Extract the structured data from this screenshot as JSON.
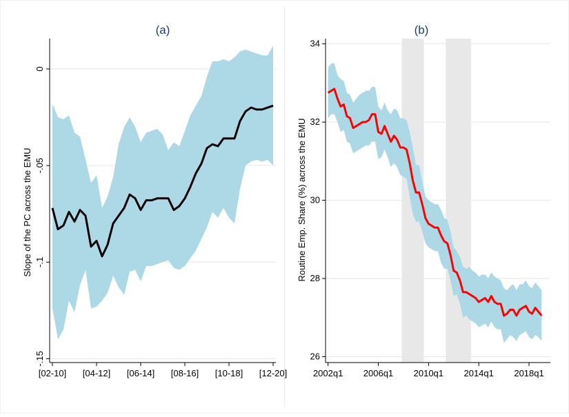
{
  "colors": {
    "band_a": "#add8e6",
    "line_a": "#000000",
    "band_b": "#add8e6",
    "line_b": "#ff0000",
    "recession": "#e8e8e8",
    "grid": "#e6e6e6",
    "title": "#1f3f6e"
  },
  "chart_data": [
    {
      "type": "line",
      "title": "(a)",
      "xlabel": "",
      "ylabel": "Slope of the PC across the EMU",
      "x_ticks": [
        "[02-10]",
        "[04-12]",
        "[06-14]",
        "[08-16]",
        "[10-18]",
        "[12-20]"
      ],
      "x_tick_indices": [
        0,
        8,
        16,
        24,
        32,
        40
      ],
      "y_ticks": [
        {
          "value": 0,
          "label": "0"
        },
        {
          "value": -0.05,
          "label": "-.05"
        },
        {
          "value": -0.1,
          "label": "-.1"
        },
        {
          "value": -0.15,
          "label": "-.15"
        }
      ],
      "ylim": [
        -0.152,
        0.015
      ],
      "xlim": [
        -0.5,
        40.5
      ],
      "series": [
        {
          "name": "Slope of the PC",
          "values": [
            -0.072,
            -0.083,
            -0.081,
            -0.074,
            -0.079,
            -0.073,
            -0.076,
            -0.092,
            -0.089,
            -0.097,
            -0.091,
            -0.08,
            -0.076,
            -0.072,
            -0.065,
            -0.067,
            -0.073,
            -0.068,
            -0.068,
            -0.067,
            -0.067,
            -0.067,
            -0.073,
            -0.071,
            -0.067,
            -0.061,
            -0.054,
            -0.049,
            -0.041,
            -0.039,
            -0.04,
            -0.036,
            -0.036,
            -0.036,
            -0.027,
            -0.022,
            -0.02,
            -0.021,
            -0.021,
            -0.02,
            -0.019
          ]
        }
      ],
      "band": {
        "upper": [
          -0.018,
          -0.025,
          -0.026,
          -0.024,
          -0.033,
          -0.035,
          -0.047,
          -0.059,
          -0.055,
          -0.072,
          -0.066,
          -0.056,
          -0.039,
          -0.03,
          -0.025,
          -0.03,
          -0.038,
          -0.033,
          -0.032,
          -0.031,
          -0.034,
          -0.042,
          -0.038,
          -0.04,
          -0.032,
          -0.024,
          -0.019,
          -0.014,
          -0.004,
          0.004,
          0.004,
          0.005,
          0.004,
          0.006,
          0.009,
          0.01,
          0.009,
          0.008,
          0.007,
          0.007,
          0.012
        ],
        "lower": [
          -0.124,
          -0.14,
          -0.135,
          -0.12,
          -0.126,
          -0.112,
          -0.104,
          -0.124,
          -0.123,
          -0.12,
          -0.116,
          -0.107,
          -0.113,
          -0.117,
          -0.105,
          -0.104,
          -0.11,
          -0.102,
          -0.102,
          -0.101,
          -0.1,
          -0.099,
          -0.103,
          -0.104,
          -0.102,
          -0.098,
          -0.094,
          -0.088,
          -0.082,
          -0.074,
          -0.077,
          -0.072,
          -0.077,
          -0.08,
          -0.062,
          -0.05,
          -0.048,
          -0.047,
          -0.048,
          -0.047,
          -0.05
        ]
      }
    },
    {
      "type": "line",
      "title": "(b)",
      "xlabel": "",
      "ylabel": "Routine Emp. Share (%) across the EMU",
      "x_ticks": [
        "2002q1",
        "2006q1",
        "2010q1",
        "2014q1",
        "2018q1"
      ],
      "x_tick_indices": [
        0,
        16,
        32,
        48,
        64
      ],
      "y_ticks": [
        {
          "value": 26,
          "label": "26"
        },
        {
          "value": 28,
          "label": "28"
        },
        {
          "value": 30,
          "label": "30"
        },
        {
          "value": 32,
          "label": "32"
        },
        {
          "value": 34,
          "label": "34"
        }
      ],
      "ylim": [
        25.85,
        34.1
      ],
      "xlim": [
        -0.8,
        70.8
      ],
      "recessions": [
        [
          23.5,
          30.5
        ],
        [
          37.5,
          45.5
        ]
      ],
      "series": [
        {
          "name": "Routine Emp. Share",
          "values": [
            32.75,
            32.8,
            32.85,
            32.6,
            32.4,
            32.45,
            32.15,
            32.1,
            31.85,
            31.9,
            31.95,
            32.0,
            32.0,
            32.05,
            32.2,
            32.2,
            31.75,
            31.7,
            31.9,
            31.7,
            31.5,
            31.65,
            31.55,
            31.35,
            31.35,
            31.3,
            30.95,
            30.5,
            30.2,
            30.2,
            29.9,
            29.55,
            29.4,
            29.35,
            29.3,
            29.3,
            29.1,
            28.95,
            28.9,
            28.6,
            28.2,
            28.15,
            27.95,
            27.65,
            27.65,
            27.6,
            27.55,
            27.5,
            27.4,
            27.45,
            27.5,
            27.4,
            27.55,
            27.4,
            27.35,
            27.35,
            27.05,
            27.1,
            27.2,
            27.2,
            27.05,
            27.2,
            27.25,
            27.3,
            27.15,
            27.1,
            27.25,
            27.15,
            27.05
          ]
        }
      ],
      "band": {
        "upper": [
          33.4,
          33.5,
          33.5,
          33.2,
          33.1,
          33.05,
          32.75,
          32.7,
          32.5,
          32.6,
          32.7,
          32.75,
          32.8,
          32.8,
          32.9,
          32.9,
          32.4,
          32.3,
          32.5,
          32.3,
          32.2,
          32.35,
          32.3,
          32.1,
          32.1,
          32.05,
          31.75,
          31.35,
          30.9,
          30.9,
          30.5,
          30.1,
          30.0,
          29.95,
          29.9,
          29.9,
          29.75,
          29.55,
          29.5,
          29.2,
          28.8,
          28.7,
          28.55,
          28.3,
          28.25,
          28.3,
          28.2,
          28.15,
          28.05,
          28.1,
          28.1,
          28.0,
          28.15,
          28.05,
          28.0,
          27.95,
          27.75,
          27.7,
          27.8,
          27.85,
          27.7,
          27.85,
          27.85,
          27.95,
          27.8,
          27.75,
          27.9,
          27.8,
          27.7
        ],
        "lower": [
          32.1,
          32.2,
          32.2,
          32.0,
          31.75,
          31.8,
          31.5,
          31.45,
          31.2,
          31.25,
          31.3,
          31.35,
          31.4,
          31.4,
          31.5,
          31.5,
          31.05,
          31.1,
          31.3,
          31.1,
          30.85,
          30.95,
          30.85,
          30.65,
          30.6,
          30.55,
          30.1,
          29.65,
          29.45,
          29.45,
          29.2,
          28.9,
          28.8,
          28.75,
          28.7,
          28.7,
          28.4,
          28.25,
          28.25,
          27.95,
          27.55,
          27.6,
          27.35,
          27.0,
          27.05,
          26.95,
          26.9,
          26.85,
          26.75,
          26.8,
          26.85,
          26.75,
          26.9,
          26.75,
          26.7,
          26.7,
          26.35,
          26.45,
          26.55,
          26.5,
          26.4,
          26.55,
          26.6,
          26.65,
          26.5,
          26.45,
          26.55,
          26.5,
          26.4
        ]
      }
    }
  ]
}
